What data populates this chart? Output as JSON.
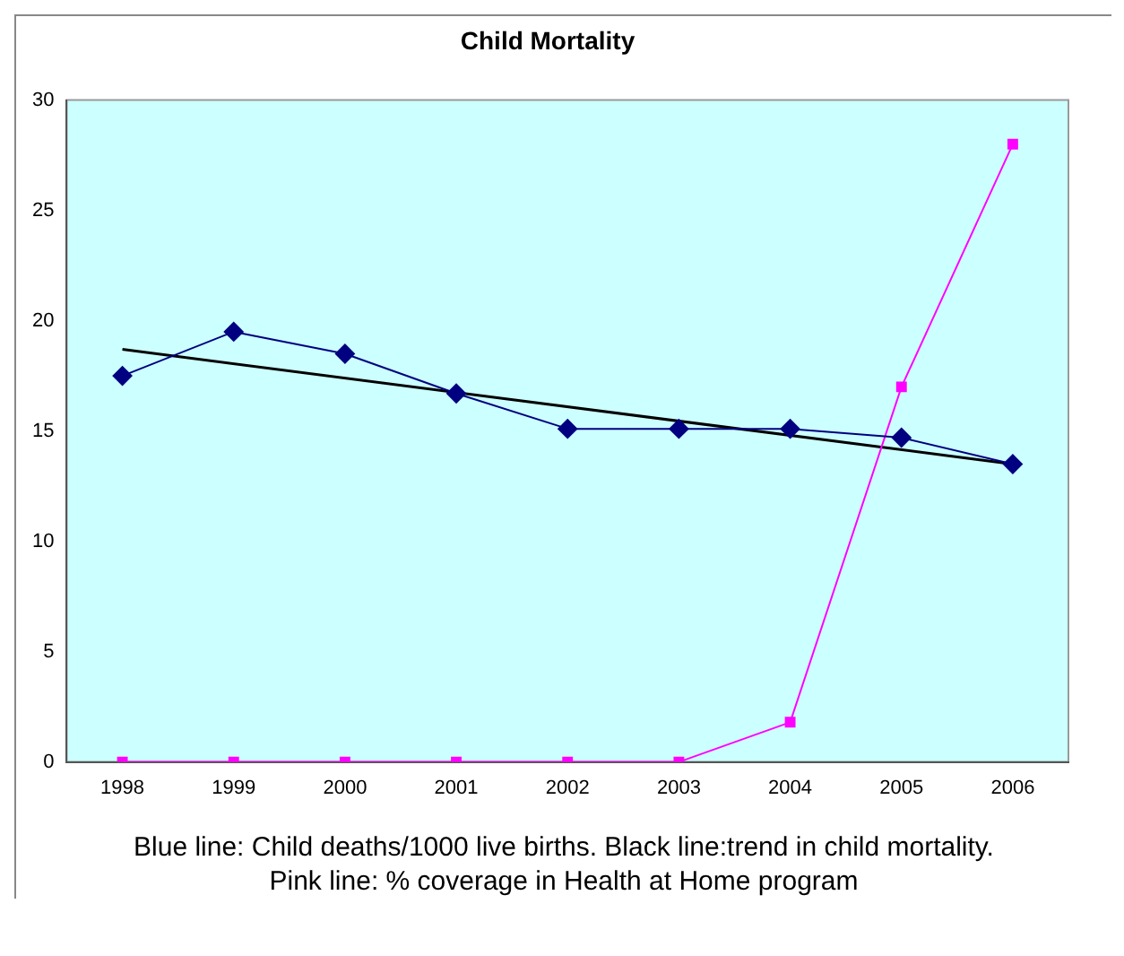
{
  "chart_data": {
    "type": "line",
    "title": "Child Mortality",
    "categories": [
      "1998",
      "1999",
      "2000",
      "2001",
      "2002",
      "2003",
      "2004",
      "2005",
      "2006"
    ],
    "series": [
      {
        "color": "#000080",
        "marker": "diamond",
        "values": [
          17.5,
          19.5,
          18.5,
          16.7,
          15.1,
          15.1,
          15.1,
          14.7,
          13.5
        ]
      },
      {
        "color": "#ff00ff",
        "marker": "square",
        "values": [
          0,
          0,
          0,
          0,
          0,
          0,
          1.8,
          17,
          28
        ]
      },
      {
        "color": "#000000",
        "marker": "none",
        "values": [
          18.7,
          null,
          null,
          null,
          null,
          null,
          null,
          null,
          13.5
        ]
      }
    ],
    "ylim": [
      0,
      30
    ],
    "yticks": [
      0,
      5,
      10,
      15,
      20,
      25,
      30
    ],
    "grid": false,
    "legend": false,
    "annotations": [
      "Blue line: Child deaths/1000 live births. Black line:trend in child mortality. Pink line: % coverage in Health at Home program"
    ]
  }
}
